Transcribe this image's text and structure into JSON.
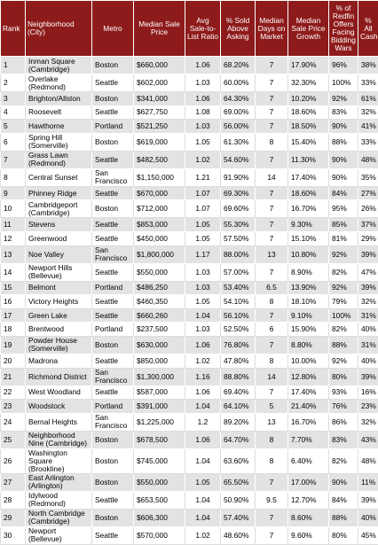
{
  "table": {
    "header": [
      "Rank",
      "Neighborhood (City)",
      "Metro",
      "Median Sale Price",
      "Avg Sale-to-List Ratio",
      "% Sold Above Asking",
      "Median Days on Market",
      "Median Sale Price Growth",
      "% of Redfin Offers Facing Bidding Wars",
      "% All Cash"
    ],
    "rows": [
      [
        "1",
        "Inman Square (Cambridge)",
        "Boston",
        "$660,000",
        "1.06",
        "68.20%",
        "7",
        "17.90%",
        "96%",
        "38%"
      ],
      [
        "2",
        "Overlake (Redmond)",
        "Seattle",
        "$602,000",
        "1.03",
        "60.00%",
        "7",
        "32.30%",
        "100%",
        "33%"
      ],
      [
        "3",
        "Brighton/Allston",
        "Boston",
        "$341,000",
        "1.06",
        "64.30%",
        "7",
        "10.20%",
        "92%",
        "61%"
      ],
      [
        "4",
        "Roosevelt",
        "Seattle",
        "$627,750",
        "1.08",
        "69.00%",
        "7",
        "18.60%",
        "83%",
        "32%"
      ],
      [
        "5",
        "Hawthorne",
        "Portland",
        "$521,250",
        "1.03",
        "56.00%",
        "7",
        "18.50%",
        "90%",
        "41%"
      ],
      [
        "6",
        "Spring Hill (Somerville)",
        "Boston",
        "$619,000",
        "1.05",
        "61.30%",
        "8",
        "15.40%",
        "88%",
        "33%"
      ],
      [
        "7",
        "Grass Lawn (Redmond)",
        "Seattle",
        "$482,500",
        "1.02",
        "54.60%",
        "7",
        "11.30%",
        "90%",
        "48%"
      ],
      [
        "8",
        "Central Sunset",
        "San Francisco",
        "$1,150,000",
        "1.21",
        "91.90%",
        "14",
        "17.40%",
        "90%",
        "35%"
      ],
      [
        "9",
        "Phinney Ridge",
        "Seattle",
        "$670,000",
        "1.07",
        "69.30%",
        "7",
        "18.60%",
        "84%",
        "27%"
      ],
      [
        "10",
        "Cambridgeport (Cambridge)",
        "Boston",
        "$712,000",
        "1.07",
        "69.60%",
        "7",
        "16.70%",
        "95%",
        "26%"
      ],
      [
        "11",
        "Stevens",
        "Seattle",
        "$853,000",
        "1.05",
        "55.30%",
        "7",
        "9.30%",
        "85%",
        "37%"
      ],
      [
        "12",
        "Greenwood",
        "Seattle",
        "$450,000",
        "1.05",
        "57.50%",
        "7",
        "15.10%",
        "81%",
        "29%"
      ],
      [
        "13",
        "Noe Valley",
        "San Francisco",
        "$1,800,000",
        "1.17",
        "88.00%",
        "13",
        "10.80%",
        "92%",
        "39%"
      ],
      [
        "14",
        "Newport Hills (Bellevue)",
        "Seattle",
        "$550,000",
        "1.03",
        "57.00%",
        "7",
        "8.90%",
        "82%",
        "47%"
      ],
      [
        "15",
        "Belmont",
        "Portland",
        "$486,250",
        "1.03",
        "53.40%",
        "6.5",
        "13.90%",
        "92%",
        "39%"
      ],
      [
        "16",
        "Victory Heights",
        "Seattle",
        "$460,350",
        "1.05",
        "54.10%",
        "8",
        "18.10%",
        "79%",
        "32%"
      ],
      [
        "17",
        "Green Lake",
        "Seattle",
        "$660,260",
        "1.04",
        "56.10%",
        "7",
        "9.10%",
        "100%",
        "31%"
      ],
      [
        "18",
        "Brentwood",
        "Portland",
        "$237,500",
        "1.03",
        "52.50%",
        "6",
        "15.90%",
        "82%",
        "40%"
      ],
      [
        "19",
        "Powder House (Somerville)",
        "Boston",
        "$630,000",
        "1.06",
        "76.80%",
        "7",
        "8.80%",
        "88%",
        "31%"
      ],
      [
        "20",
        "Madrona",
        "Seattle",
        "$850,000",
        "1.02",
        "47.80%",
        "8",
        "10.00%",
        "92%",
        "40%"
      ],
      [
        "21",
        "Richmond District",
        "San Francisco",
        "$1,300,000",
        "1.16",
        "88.80%",
        "14",
        "12.80%",
        "80%",
        "39%"
      ],
      [
        "22",
        "West Woodland",
        "Seattle",
        "$587,000",
        "1.06",
        "69.40%",
        "7",
        "17.40%",
        "93%",
        "16%"
      ],
      [
        "23",
        "Woodstock",
        "Portland",
        "$391,000",
        "1.04",
        "64.10%",
        "5",
        "21.40%",
        "76%",
        "23%"
      ],
      [
        "24",
        "Bernal Heights",
        "San Francisco",
        "$1,225,000",
        "1.2",
        "89.20%",
        "13",
        "16.70%",
        "86%",
        "32%"
      ],
      [
        "25",
        "Neighborhood Nine (Cambridge)",
        "Boston",
        "$678,500",
        "1.06",
        "64.70%",
        "8",
        "7.70%",
        "83%",
        "43%"
      ],
      [
        "26",
        "Washington Square (Brookline)",
        "Boston",
        "$745,000",
        "1.04",
        "63.60%",
        "8",
        "6.40%",
        "82%",
        "48%"
      ],
      [
        "27",
        "East Arlington (Arlington)",
        "Boston",
        "$550,000",
        "1.05",
        "65.50%",
        "7",
        "17.00%",
        "90%",
        "11%"
      ],
      [
        "28",
        "Idylwood (Redmond)",
        "Seattle",
        "$653,500",
        "1.04",
        "50.90%",
        "9.5",
        "12.70%",
        "84%",
        "39%"
      ],
      [
        "29",
        "North Cambridge (Cambridge)",
        "Boston",
        "$606,300",
        "1.04",
        "57.40%",
        "7",
        "8.60%",
        "88%",
        "40%"
      ],
      [
        "30",
        "Newport (Bellevue)",
        "Seattle",
        "$570,000",
        "1.02",
        "48.60%",
        "7",
        "9.60%",
        "80%",
        "45%"
      ]
    ]
  }
}
